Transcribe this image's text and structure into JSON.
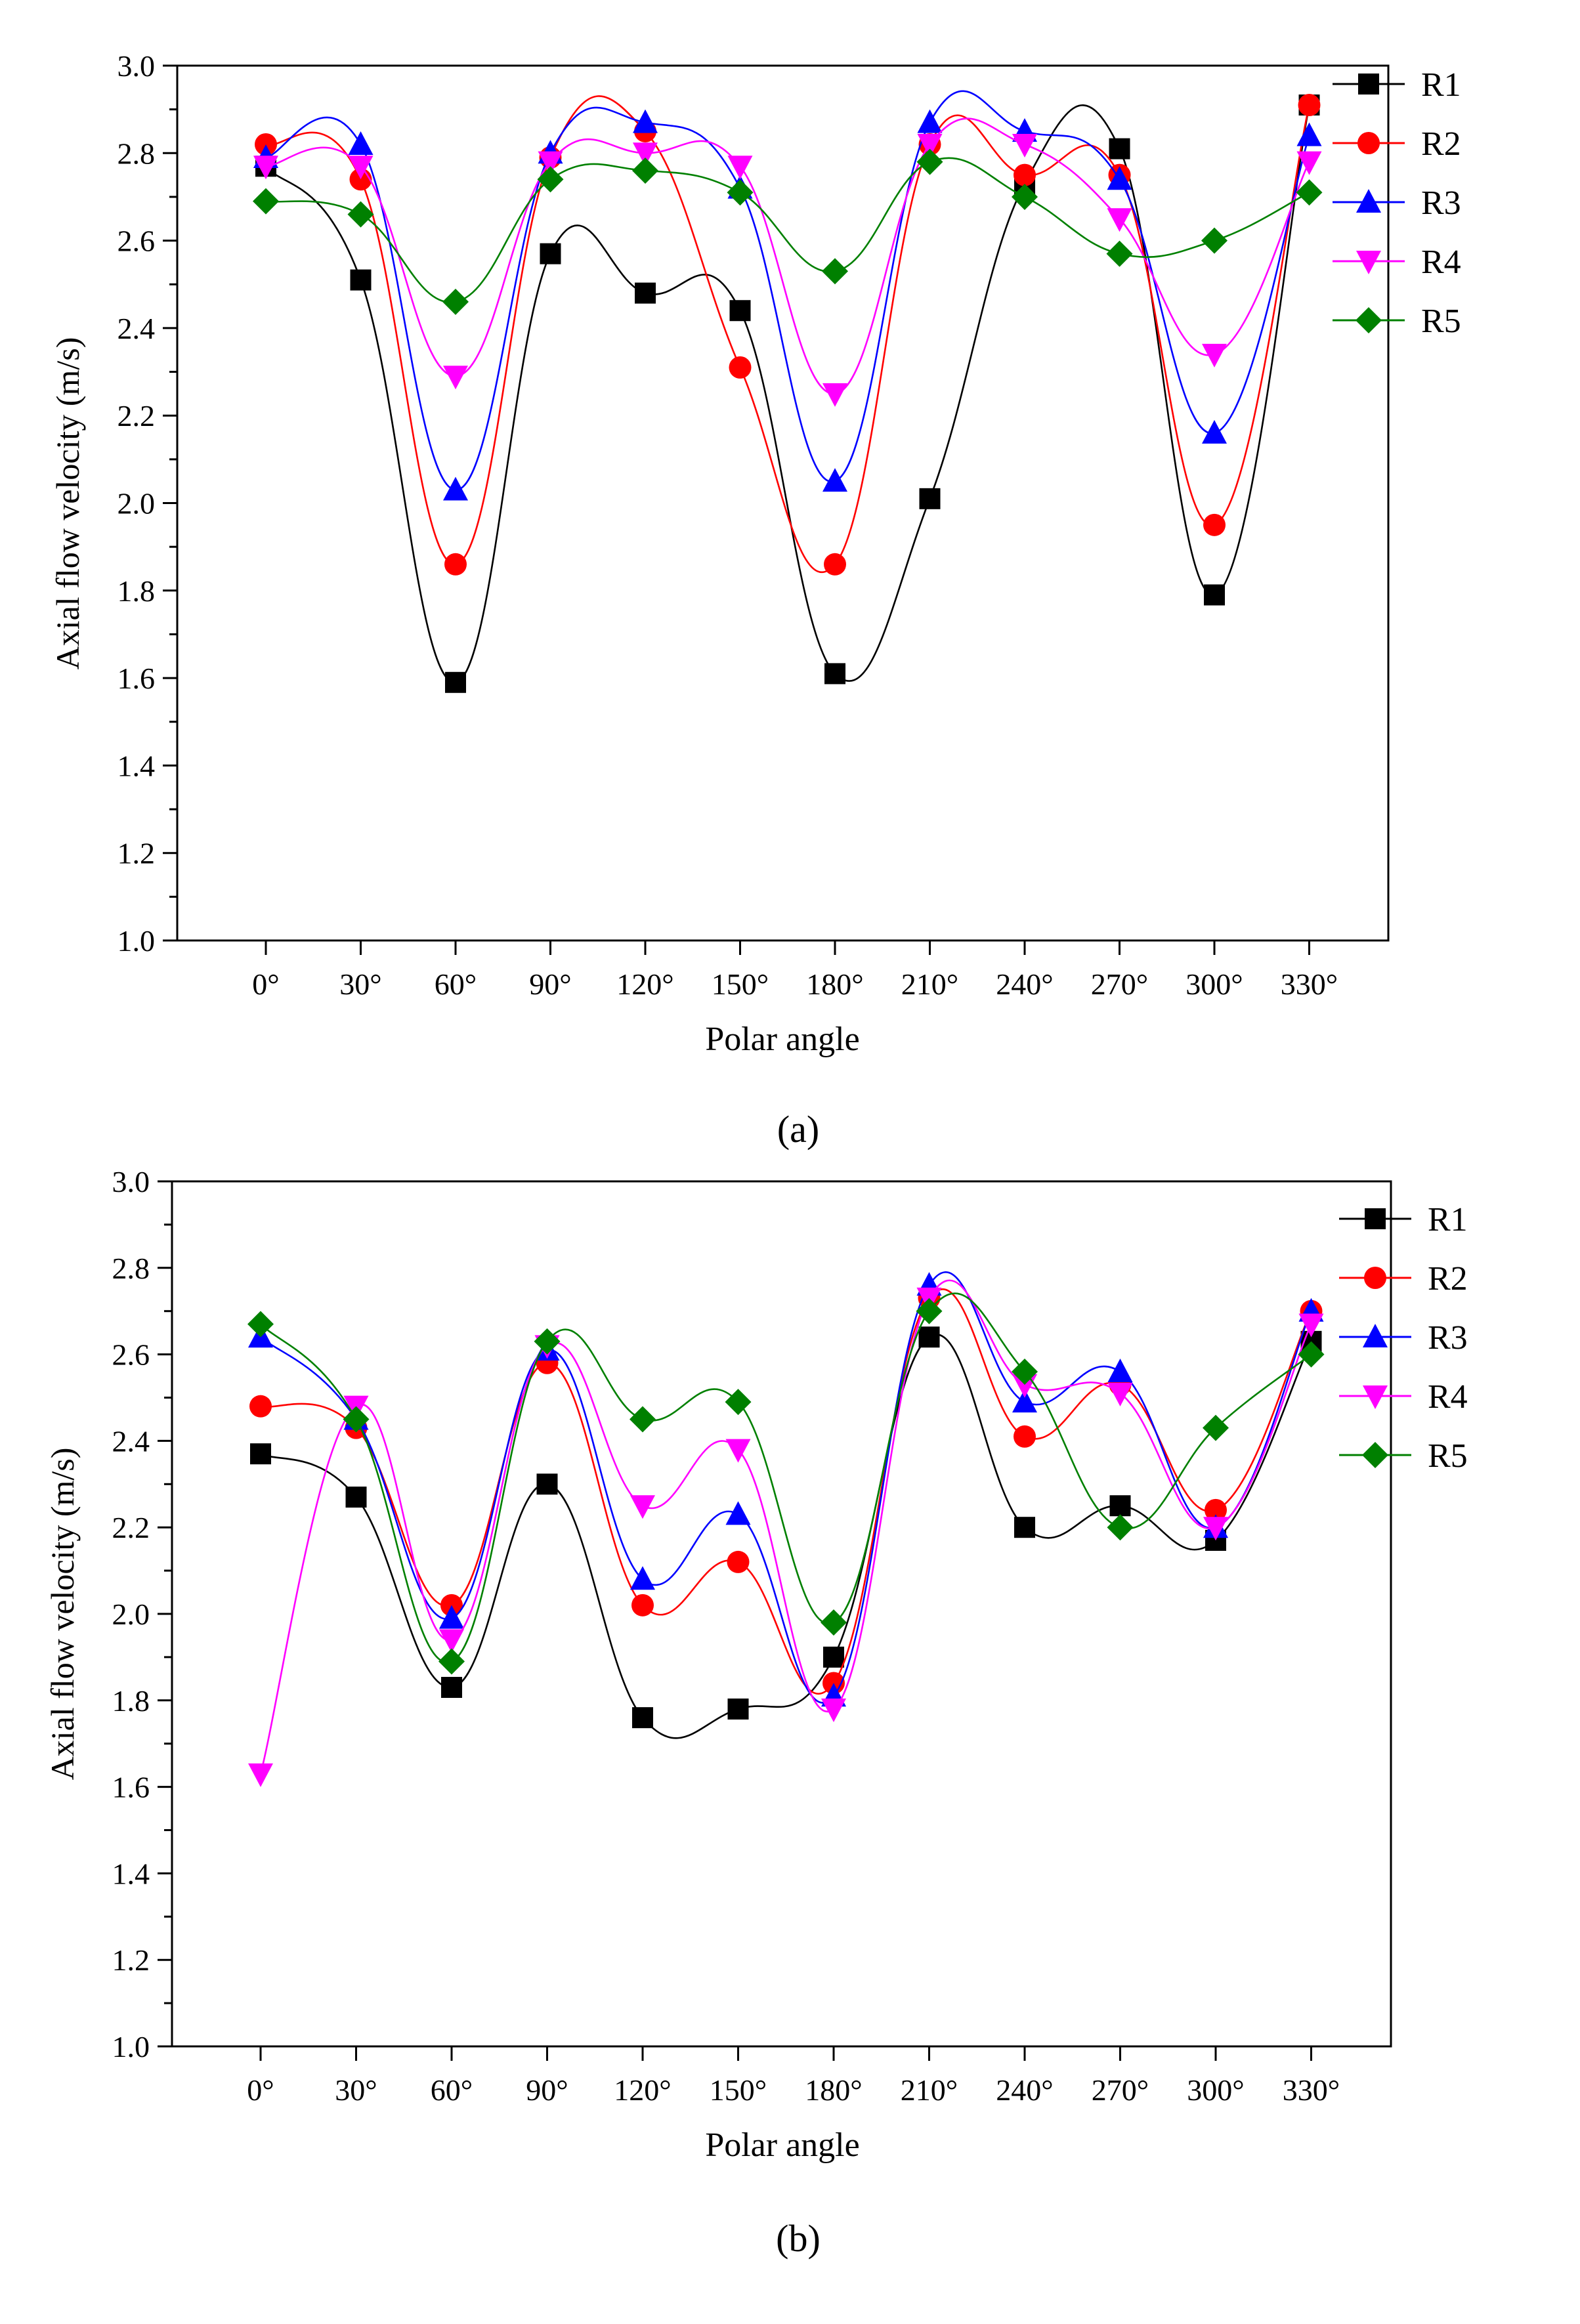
{
  "chart_data": [
    {
      "type": "line",
      "panel_label": "(a)",
      "xlabel": "Polar angle",
      "ylabel": "Axial flow velocity (m/s)",
      "ylim": [
        1.0,
        3.0
      ],
      "yticks": [
        "1.0",
        "1.2",
        "1.4",
        "1.6",
        "1.8",
        "2.0",
        "2.2",
        "2.4",
        "2.6",
        "2.8",
        "3.0"
      ],
      "categories": [
        "0°",
        "30°",
        "60°",
        "90°",
        "120°",
        "150°",
        "180°",
        "210°",
        "240°",
        "270°",
        "300°",
        "330°"
      ],
      "legend_position": "top-right",
      "series": [
        {
          "name": "R1",
          "color": "#000000",
          "marker": "square",
          "values": [
            2.77,
            2.51,
            1.59,
            2.57,
            2.48,
            2.44,
            1.61,
            2.01,
            2.73,
            2.81,
            1.79,
            2.91
          ]
        },
        {
          "name": "R2",
          "color": "#ff0000",
          "marker": "circle",
          "values": [
            2.82,
            2.74,
            1.86,
            2.79,
            2.85,
            2.31,
            1.86,
            2.82,
            2.75,
            2.75,
            1.95,
            2.91
          ]
        },
        {
          "name": "R3",
          "color": "#0000ff",
          "marker": "triangle-up",
          "values": [
            2.79,
            2.82,
            2.03,
            2.8,
            2.87,
            2.72,
            2.05,
            2.87,
            2.85,
            2.74,
            2.16,
            2.84
          ]
        },
        {
          "name": "R4",
          "color": "#ff00ff",
          "marker": "triangle-down",
          "values": [
            2.77,
            2.77,
            2.29,
            2.78,
            2.8,
            2.77,
            2.25,
            2.82,
            2.82,
            2.65,
            2.34,
            2.78
          ]
        },
        {
          "name": "R5",
          "color": "#008000",
          "marker": "diamond",
          "values": [
            2.69,
            2.66,
            2.46,
            2.74,
            2.76,
            2.71,
            2.53,
            2.78,
            2.7,
            2.57,
            2.6,
            2.71
          ]
        }
      ]
    },
    {
      "type": "line",
      "panel_label": "(b)",
      "xlabel": "Polar angle",
      "ylabel": "Axial flow velocity (m/s)",
      "ylim": [
        1.0,
        3.0
      ],
      "yticks": [
        "1.0",
        "1.2",
        "1.4",
        "1.6",
        "1.8",
        "2.0",
        "2.2",
        "2.4",
        "2.6",
        "2.8",
        "3.0"
      ],
      "categories": [
        "0°",
        "30°",
        "60°",
        "90°",
        "120°",
        "150°",
        "180°",
        "210°",
        "240°",
        "270°",
        "300°",
        "330°"
      ],
      "legend_position": "top-right",
      "series": [
        {
          "name": "R1",
          "color": "#000000",
          "marker": "square",
          "values": [
            2.37,
            2.27,
            1.83,
            2.3,
            1.76,
            1.78,
            1.9,
            2.64,
            2.2,
            2.25,
            2.17,
            2.63
          ]
        },
        {
          "name": "R2",
          "color": "#ff0000",
          "marker": "circle",
          "values": [
            2.48,
            2.43,
            2.02,
            2.58,
            2.02,
            2.12,
            1.84,
            2.73,
            2.41,
            2.53,
            2.24,
            2.7
          ]
        },
        {
          "name": "R3",
          "color": "#0000ff",
          "marker": "triangle-up",
          "values": [
            2.64,
            2.45,
            1.99,
            2.61,
            2.08,
            2.23,
            1.81,
            2.76,
            2.49,
            2.56,
            2.2,
            2.7
          ]
        },
        {
          "name": "R4",
          "color": "#ff00ff",
          "marker": "triangle-down",
          "values": [
            1.63,
            2.48,
            1.94,
            2.62,
            2.25,
            2.38,
            1.78,
            2.73,
            2.53,
            2.51,
            2.2,
            2.67
          ]
        },
        {
          "name": "R5",
          "color": "#008000",
          "marker": "diamond",
          "values": [
            2.67,
            2.45,
            1.89,
            2.63,
            2.45,
            2.49,
            1.98,
            2.7,
            2.56,
            2.2,
            2.43,
            2.6
          ]
        }
      ]
    }
  ]
}
